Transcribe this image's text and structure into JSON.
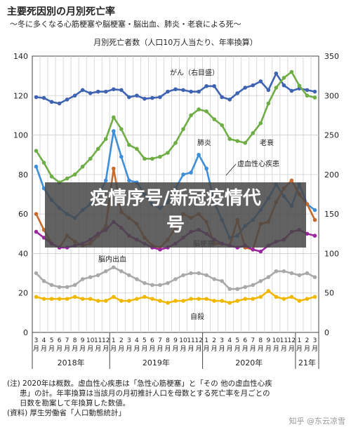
{
  "header": {
    "title": "主要死因別の月別死亡率",
    "subtitle": "～冬に多くなる心筋梗塞や脳梗塞・脳出血、肺炎・老衰による死～"
  },
  "chart_data": {
    "type": "line",
    "title": "月別死亡者数（人口10万人当たり、年率換算）",
    "y_left": {
      "ticks": [
        0,
        20,
        40,
        60,
        80,
        100,
        120,
        140
      ],
      "ylim": [
        0,
        140
      ]
    },
    "y_right": {
      "ticks": [
        0,
        50,
        100,
        150,
        200,
        250,
        300,
        350
      ],
      "ylim": [
        0,
        350
      ]
    },
    "x_month_labels": [
      "3",
      "4",
      "5",
      "6",
      "7",
      "8",
      "9",
      "10",
      "11",
      "12",
      "1",
      "2",
      "3",
      "4",
      "5",
      "6",
      "7",
      "8",
      "9",
      "10",
      "11",
      "12",
      "1",
      "2",
      "3",
      "4",
      "5",
      "6",
      "7",
      "8",
      "9",
      "10",
      "11",
      "12",
      "1",
      "2",
      "3"
    ],
    "year_labels": [
      {
        "label": "2018年",
        "from": 0,
        "to": 9
      },
      {
        "label": "2019年",
        "from": 10,
        "to": 21
      },
      {
        "label": "2020年",
        "from": 22,
        "to": 33
      },
      {
        "label": "21年",
        "from": 34,
        "to": 36
      }
    ],
    "grid": true,
    "series": [
      {
        "name": "がん（右目盛）",
        "axis": "right",
        "color": "#3f63b3",
        "values": [
          298,
          297,
          292,
          290,
          295,
          300,
          307,
          303,
          305,
          305,
          308,
          307,
          298,
          300,
          296,
          297,
          298,
          305,
          308,
          307,
          305,
          305,
          312,
          312,
          298,
          295,
          303,
          310,
          313,
          318,
          307,
          328,
          313,
          306,
          309,
          307,
          305
        ]
      },
      {
        "name": "肺炎",
        "axis": "left",
        "color": "#3f8fd8",
        "values": [
          84,
          73,
          67,
          63,
          60,
          58,
          62,
          65,
          69,
          77,
          102,
          89,
          77,
          76,
          70,
          65,
          63,
          66,
          73,
          80,
          81,
          90,
          83,
          66,
          57,
          48,
          49,
          54,
          57,
          62,
          68,
          75,
          69,
          64,
          75,
          65,
          62
        ]
      },
      {
        "name": "老衰",
        "axis": "left",
        "color": "#6fad45",
        "values": [
          92,
          86,
          79,
          76,
          78,
          80,
          84,
          88,
          93,
          98,
          109,
          103,
          95,
          93,
          88,
          88,
          89,
          91,
          96,
          103,
          110,
          113,
          112,
          108,
          105,
          98,
          97,
          96,
          101,
          106,
          116,
          124,
          129,
          132,
          125,
          120,
          119
        ]
      },
      {
        "name": "虚血性心疾患",
        "axis": "left",
        "color": "#c86a2b",
        "values": [
          60,
          52,
          45,
          43,
          49,
          46,
          44,
          45,
          49,
          54,
          83,
          61,
          58,
          55,
          48,
          44,
          43,
          47,
          53,
          60,
          58,
          60,
          56,
          45,
          45,
          44,
          57,
          43,
          42,
          55,
          56,
          66,
          73,
          77,
          70,
          65,
          57
        ]
      },
      {
        "name": "脳梗塞",
        "axis": "left",
        "color": "#9b28a0",
        "values": [
          51,
          48,
          45,
          43,
          43,
          44,
          45,
          47,
          50,
          52,
          56,
          53,
          49,
          47,
          45,
          43,
          42,
          43,
          45,
          48,
          51,
          52,
          50,
          47,
          45,
          44,
          43,
          44,
          42,
          41,
          44,
          46,
          47,
          51,
          52,
          50,
          49
        ]
      },
      {
        "name": "脳内出血",
        "axis": "left",
        "color": "#a9a9a9",
        "values": [
          30,
          26,
          24,
          23,
          23,
          24,
          27,
          28,
          29,
          31,
          33,
          31,
          29,
          27,
          25,
          24,
          24,
          25,
          27,
          29,
          30,
          30,
          29,
          27,
          26,
          22,
          22,
          23,
          24,
          26,
          28,
          31,
          31,
          30,
          29,
          30,
          28
        ]
      },
      {
        "name": "自殺",
        "axis": "left",
        "color": "#f0b800",
        "values": [
          18,
          17,
          17,
          17,
          17,
          18,
          17,
          17,
          16,
          16,
          18,
          16,
          16,
          17,
          18,
          17,
          16,
          15,
          16,
          16,
          17,
          17,
          17,
          16,
          16,
          15,
          16,
          17,
          17,
          18,
          21,
          18,
          17,
          18,
          16,
          17,
          18
        ]
      }
    ],
    "annotations": [
      "がん（右目盛）",
      "肺炎",
      "老衰",
      "虚血性心疾患",
      "脳梗塞",
      "脳内出血",
      "自殺"
    ]
  },
  "notes": {
    "line1": "(注) 2020年は概数。虚血性心疾患は「急性心筋梗塞」と「その 他の虚血性心疾",
    "line2": "患」の計。年率換算は当該月の月初推計人口を母数とする死亡率を月ごとの",
    "line3": "日数を勘案して年換算した数値。",
    "line4": "(資料) 厚生労働省「人口動態統計」"
  },
  "overlay": {
    "line1": "疫情序号/新冠疫情代",
    "line2": "号"
  },
  "watermark": "知乎 @东云凉雪",
  "colors": {
    "grid": "#cfcfcf",
    "axis": "#444444",
    "overlay_bg": "#474747"
  }
}
